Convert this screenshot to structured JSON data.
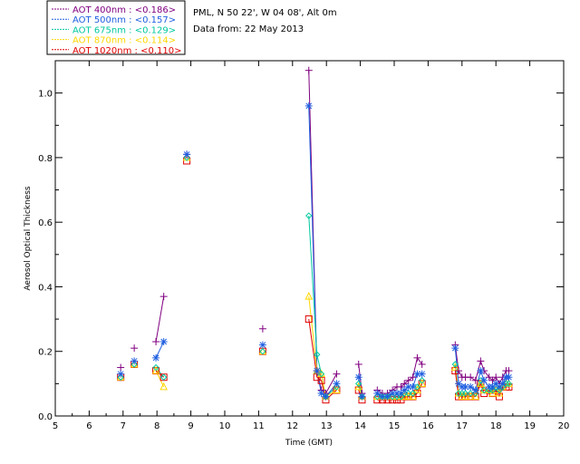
{
  "chart_data": {
    "type": "scatter",
    "title_lines": [
      "PML, N 50 22', W 04 08', Alt 0m",
      "Data from: 22 May 2013"
    ],
    "xlabel": "Time (GMT)",
    "ylabel": "Aerosol Optical Thickness",
    "xlim": [
      5,
      20
    ],
    "ylim": [
      0,
      1.1
    ],
    "xticks": [
      5,
      6,
      7,
      8,
      9,
      10,
      11,
      12,
      13,
      14,
      15,
      16,
      17,
      18,
      19,
      20
    ],
    "yticks": [
      0.0,
      0.2,
      0.4,
      0.6,
      0.8,
      1.0
    ],
    "ytick_labels": [
      "0.0",
      "0.2",
      "0.4",
      "0.6",
      "0.8",
      "1.0"
    ],
    "legend_position": "top-left",
    "series": [
      {
        "name": "AOT  400nm : <0.186>",
        "color": "#800080",
        "marker": "plus",
        "x": [
          6.93,
          7.33,
          7.97,
          8.2,
          8.88,
          11.12,
          12.48,
          12.72,
          12.85,
          12.98,
          13.3,
          13.95,
          14.05,
          14.5,
          14.65,
          14.8,
          14.95,
          15.08,
          15.2,
          15.3,
          15.42,
          15.55,
          15.68,
          15.82,
          16.8,
          16.9,
          17.0,
          17.1,
          17.25,
          17.4,
          17.55,
          17.65,
          17.8,
          17.9,
          18.0,
          18.1,
          18.2,
          18.3,
          18.38
        ],
        "y": [
          0.15,
          0.21,
          0.23,
          0.37,
          0.81,
          0.27,
          1.07,
          0.14,
          0.08,
          0.07,
          0.13,
          0.16,
          0.07,
          0.08,
          0.07,
          0.07,
          0.08,
          0.09,
          0.09,
          0.1,
          0.11,
          0.12,
          0.18,
          0.16,
          0.22,
          0.14,
          0.12,
          0.12,
          0.12,
          0.11,
          0.17,
          0.14,
          0.12,
          0.11,
          0.12,
          0.1,
          0.12,
          0.14,
          0.14
        ]
      },
      {
        "name": "AOT  500nm : <0.157>",
        "color": "#1f5fe0",
        "marker": "star",
        "x": [
          6.93,
          7.33,
          7.97,
          8.2,
          8.88,
          11.12,
          12.48,
          12.72,
          12.85,
          12.98,
          13.3,
          13.95,
          14.05,
          14.5,
          14.65,
          14.8,
          14.95,
          15.08,
          15.2,
          15.3,
          15.42,
          15.55,
          15.68,
          15.82,
          16.8,
          16.9,
          17.0,
          17.1,
          17.25,
          17.4,
          17.55,
          17.65,
          17.8,
          17.9,
          18.0,
          18.1,
          18.2,
          18.3,
          18.38
        ],
        "y": [
          0.13,
          0.17,
          0.18,
          0.23,
          0.81,
          0.22,
          0.96,
          0.14,
          0.07,
          0.06,
          0.1,
          0.12,
          0.06,
          0.07,
          0.06,
          0.06,
          0.07,
          0.07,
          0.07,
          0.08,
          0.09,
          0.09,
          0.13,
          0.13,
          0.21,
          0.1,
          0.09,
          0.09,
          0.09,
          0.08,
          0.14,
          0.11,
          0.09,
          0.09,
          0.1,
          0.09,
          0.1,
          0.12,
          0.12
        ]
      },
      {
        "name": "AOT  675nm : <0.129>",
        "color": "#00c8a0",
        "marker": "diamond",
        "x": [
          6.93,
          7.33,
          7.97,
          8.2,
          8.88,
          11.12,
          12.48,
          12.72,
          12.85,
          12.98,
          13.3,
          13.95,
          14.05,
          14.5,
          14.65,
          14.8,
          14.95,
          15.08,
          15.2,
          15.3,
          15.42,
          15.55,
          15.68,
          15.82,
          16.8,
          16.9,
          17.0,
          17.1,
          17.25,
          17.4,
          17.55,
          17.65,
          17.8,
          17.9,
          18.0,
          18.1,
          18.2,
          18.3,
          18.38
        ],
        "y": [
          0.12,
          0.16,
          0.15,
          0.12,
          0.8,
          0.2,
          0.62,
          0.19,
          0.13,
          0.06,
          0.09,
          0.1,
          0.06,
          0.06,
          0.06,
          0.06,
          0.06,
          0.06,
          0.06,
          0.07,
          0.07,
          0.07,
          0.09,
          0.11,
          0.16,
          0.07,
          0.07,
          0.07,
          0.07,
          0.07,
          0.11,
          0.08,
          0.08,
          0.08,
          0.09,
          0.08,
          0.09,
          0.1,
          0.1
        ]
      },
      {
        "name": "AOT  870nm : <0.114>",
        "color": "#ffd700",
        "marker": "triangle",
        "x": [
          6.93,
          7.33,
          7.97,
          8.2,
          8.88,
          11.12,
          12.48,
          12.72,
          12.85,
          12.98,
          13.3,
          13.95,
          14.05,
          14.5,
          14.65,
          14.8,
          14.95,
          15.08,
          15.2,
          15.3,
          15.42,
          15.55,
          15.68,
          15.82,
          16.8,
          16.9,
          17.0,
          17.1,
          17.25,
          17.4,
          17.55,
          17.65,
          17.8,
          17.9,
          18.0,
          18.1,
          18.2,
          18.3,
          18.38
        ],
        "y": [
          0.12,
          0.16,
          0.14,
          0.09,
          0.8,
          0.2,
          0.37,
          0.14,
          0.13,
          0.06,
          0.08,
          0.09,
          0.06,
          0.06,
          0.06,
          0.06,
          0.06,
          0.06,
          0.06,
          0.06,
          0.06,
          0.06,
          0.08,
          0.1,
          0.15,
          0.07,
          0.06,
          0.06,
          0.06,
          0.06,
          0.1,
          0.08,
          0.08,
          0.07,
          0.08,
          0.07,
          0.09,
          0.1,
          0.1
        ]
      },
      {
        "name": "AOT 1020nm : <0.110>",
        "color": "#e00000",
        "marker": "square",
        "x": [
          6.93,
          7.33,
          7.97,
          8.2,
          8.88,
          11.12,
          12.48,
          12.72,
          12.85,
          12.98,
          13.3,
          13.95,
          14.05,
          14.5,
          14.65,
          14.8,
          14.95,
          15.08,
          15.2,
          15.3,
          15.42,
          15.55,
          15.68,
          15.82,
          16.8,
          16.9,
          17.0,
          17.1,
          17.25,
          17.4,
          17.55,
          17.65,
          17.8,
          17.9,
          18.0,
          18.1,
          18.2,
          18.3,
          18.38
        ],
        "y": [
          0.12,
          0.16,
          0.14,
          0.12,
          0.79,
          0.2,
          0.3,
          0.12,
          0.11,
          0.05,
          0.08,
          0.08,
          0.05,
          0.05,
          0.05,
          0.05,
          0.05,
          0.05,
          0.05,
          0.06,
          0.06,
          0.06,
          0.07,
          0.1,
          0.14,
          0.06,
          0.06,
          0.06,
          0.06,
          0.06,
          0.1,
          0.07,
          0.08,
          0.07,
          0.08,
          0.06,
          0.09,
          0.09,
          0.09
        ]
      }
    ]
  }
}
